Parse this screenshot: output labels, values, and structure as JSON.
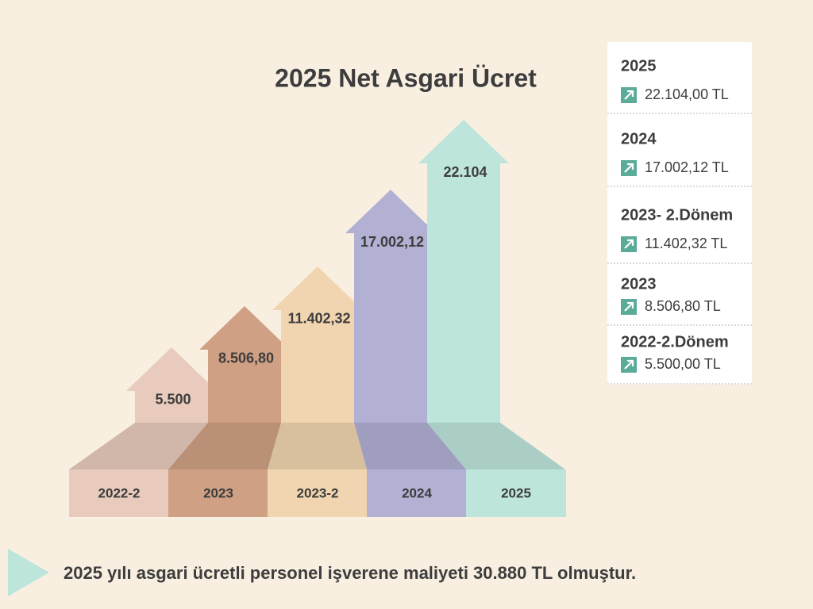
{
  "chart_data": {
    "type": "arrow-bar",
    "title": "2025 Net Asgari Ücret",
    "categories": [
      "2022-2",
      "2023",
      "2023-2",
      "2024",
      "2025"
    ],
    "values": [
      5500,
      8506.8,
      11402.32,
      17002.12,
      22104
    ],
    "value_labels": [
      "5.500",
      "8.506,80",
      "11.402,32",
      "17.002,12",
      "22.104"
    ],
    "colors": [
      "#e8cbbd",
      "#cfa083",
      "#f0d5b0",
      "#b2b0d3",
      "#bde5dc"
    ]
  },
  "side_panel": [
    {
      "label": "2025",
      "amount": "22.104,00 TL"
    },
    {
      "label": "2024",
      "amount": "17.002,12 TL"
    },
    {
      "label": "2023- 2.Dönem",
      "amount": "11.402,32 TL"
    },
    {
      "label": "2023",
      "amount": "8.506,80 TL"
    },
    {
      "label": "2022-2.Dönem",
      "amount": "5.500,00 TL"
    }
  ],
  "footer": "2025 yılı asgari ücretli personel işverene maliyeti  30.880 TL olmuştur."
}
